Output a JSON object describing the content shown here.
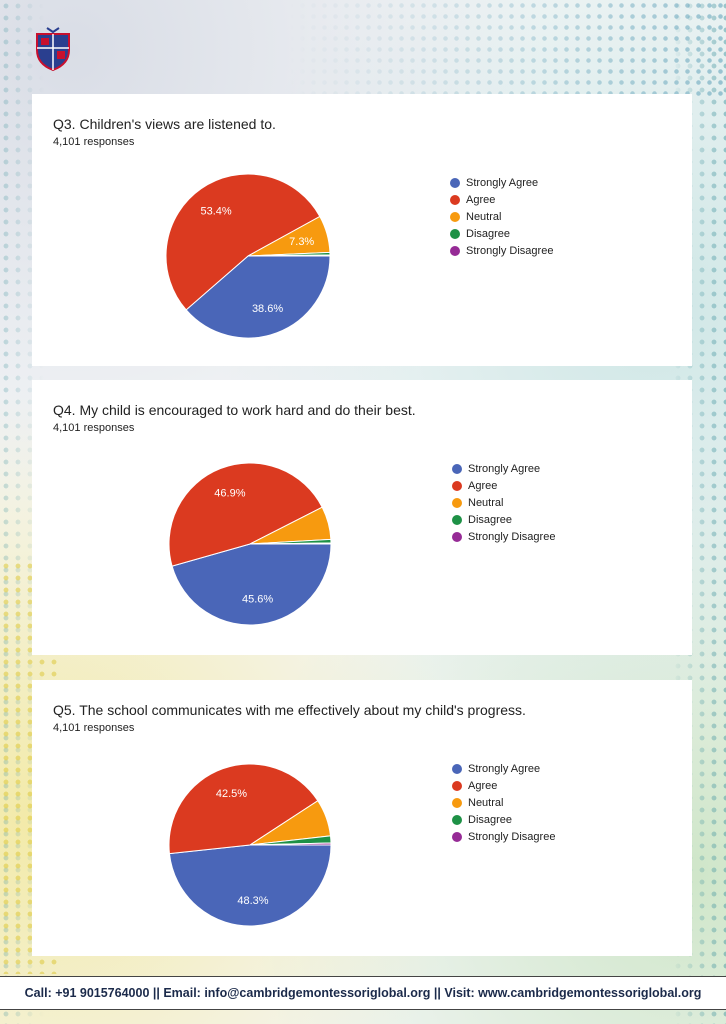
{
  "colors": {
    "strongly_agree": "#4a66b8",
    "agree": "#db3a20",
    "neutral": "#f79a0f",
    "disagree": "#1e9146",
    "strongly_disagree": "#962b96"
  },
  "logo": {
    "icon": "school-crest-icon"
  },
  "chart_data": [
    {
      "type": "pie",
      "title": "Q3. Children's views are listened to.",
      "subtitle": "4,101 responses",
      "legend": [
        "Strongly Agree",
        "Agree",
        "Neutral",
        "Disagree",
        "Strongly Disagree"
      ],
      "legend_position": "right",
      "values": [
        38.6,
        53.4,
        7.3,
        0.5,
        0.2
      ],
      "labels": [
        "38.6%",
        "53.4%",
        "7.3%",
        "",
        ""
      ]
    },
    {
      "type": "pie",
      "title": "Q4. My child is encouraged to work hard and do their best.",
      "subtitle": "4,101 responses",
      "legend": [
        "Strongly Agree",
        "Agree",
        "Neutral",
        "Disagree",
        "Strongly Disagree"
      ],
      "legend_position": "right",
      "values": [
        45.6,
        46.9,
        6.6,
        0.7,
        0.2
      ],
      "labels": [
        "45.6%",
        "46.9%",
        "",
        "",
        ""
      ]
    },
    {
      "type": "pie",
      "title": "Q5. The school communicates with me effectively about my child's progress.",
      "subtitle": "4,101 responses",
      "legend": [
        "Strongly Agree",
        "Agree",
        "Neutral",
        "Disagree",
        "Strongly Disagree"
      ],
      "legend_position": "right",
      "values": [
        48.3,
        42.5,
        7.4,
        1.4,
        0.4
      ],
      "labels": [
        "48.3%",
        "42.5%",
        "",
        "",
        ""
      ]
    }
  ],
  "footer": {
    "text": "Call: +91 9015764000 || Email: info@cambridgemontessoriglobal.org || Visit: www.cambridgemontessoriglobal.org"
  }
}
